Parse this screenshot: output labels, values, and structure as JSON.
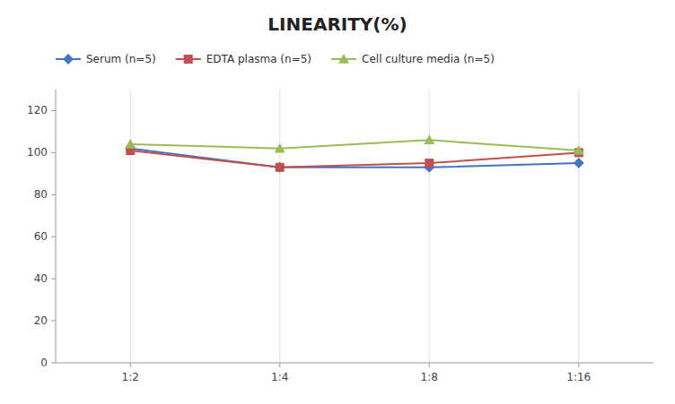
{
  "chart_data": {
    "type": "line",
    "title": "LINEARITY(%)",
    "categories": [
      "1:2",
      "1:4",
      "1:8",
      "1:16"
    ],
    "series": [
      {
        "name": "Serum (n=5)",
        "color": "#4472C4",
        "marker": "diamond",
        "values": [
          102,
          93,
          93,
          95
        ]
      },
      {
        "name": "EDTA plasma (n=5)",
        "color": "#C0504D",
        "marker": "square",
        "values": [
          101,
          93,
          95,
          100
        ]
      },
      {
        "name": "Cell culture media (n=5)",
        "color": "#9BBB59",
        "marker": "triangle",
        "values": [
          104,
          102,
          106,
          101
        ]
      }
    ],
    "ylim": [
      0,
      130
    ],
    "yticks": [
      0,
      20,
      40,
      60,
      80,
      100,
      120
    ],
    "grid": "x",
    "legend": "top"
  }
}
